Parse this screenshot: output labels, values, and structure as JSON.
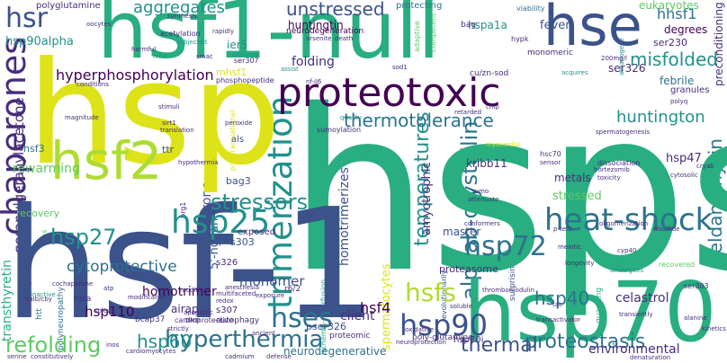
{
  "palette": {
    "dark_purple": "#440154",
    "indigo": "#472d7b",
    "blue": "#3b528b",
    "steel": "#2c728e",
    "teal": "#21918c",
    "sea_green": "#28ae80",
    "green": "#5ec962",
    "lime": "#addc30",
    "yellow": "#dde318"
  },
  "words": {
    "hsps": "hsps",
    "hsf_1": "hsf-1",
    "hsp": "hsp",
    "hsf1_null": "hsf1-null",
    "hsp70": "hsp70",
    "proteotoxic": "proteotoxic",
    "hse": "hse",
    "hsf2": "hsf2",
    "heat_shock": "heat-shock",
    "chaperones": "chaperones",
    "hsr": "hsr",
    "hsp25": "hsp25",
    "hsp72": "hsp72",
    "hsp90": "hsp90",
    "hses": "hses",
    "hsfs": "hsfs",
    "trimerization": "trimerization",
    "stressors": "stressors",
    "hyperthermia": "hyperthermia",
    "refolding": "refolding",
    "unstressed": "unstressed",
    "thermotolerance": "thermotolerance",
    "huntington": "huntington",
    "proteostasis": "proteostasis",
    "hsp27": "hsp27",
    "aggregates": "aggregates",
    "misfolded": "misfolded",
    "hyperphosphorylation": "hyperphosphorylation",
    "cytoprotective": "cytoprotective",
    "hsp60": "hsp60",
    "hsp40": "hsp40",
    "thermal": "thermal",
    "temperatures": "temperatures",
    "hsf4": "hsf4",
    "hsp110": "hsp110",
    "hhsf1": "hhsf1",
    "fever": "fever",
    "eukaryotes": "eukaryotes",
    "hsp90alpha": "hsp90alpha",
    "folding": "folding",
    "huntingtin": "huntingtin",
    "rewarming": "rewarming",
    "alphab_crystallin": "alphab-crystallin",
    "celastrol": "celastrol",
    "monomer": "monomer",
    "homotrimer": "homotrimer",
    "stressed": "stressed",
    "environmental": "environmental",
    "neurodegenerative": "neurodegenerative",
    "client": "client",
    "degrees": "degrees",
    "hsp47": "hsp47",
    "metals": "metals",
    "geldanamycin": "geldanamycin",
    "febrile": "febrile",
    "hspa1a": "hspa1a",
    "ser326": "ser326",
    "ser230": "ser230",
    "ier5": "ier5",
    "hsf3": "hsf3",
    "mhsf1": "mhsf1",
    "amyotrophic": "amyotrophic",
    "master": "master",
    "kribb11": "kribb11",
    "homotrimerizes": "homotrimerizes",
    "proteasome": "proteasome",
    "hsp70i": "hsp70i",
    "pser326": "pser326",
    "airap": "airap",
    "recovery": "recovery",
    "s303": "s303",
    "bag3": "bag3",
    "s326": "s326",
    "s307": "s307",
    "multichaperone": "multichaperone",
    "geranylgeranylacetone": "geranylgeranylacetone",
    "transthyretin": "transthyretin",
    "granules": "granules",
    "polyglutamine": "polyglutamine",
    "ngaan3": "5'-ngaan-3'",
    "preconditioning": "preconditioning",
    "spermatocytes": "spermatocytes",
    "ttr": "ttr",
    "als": "als",
    "bcap37": "bcap37",
    "poly_glutamine": "poly-glutamine",
    "proteomic": "proteomic",
    "autophagy": "autophagy",
    "hela": "hela",
    "cardioprotective": "cardioprotective",
    "hs": "hs",
    "r6_2": "r6/2",
    "exposed": "exposed",
    "neurodegeneration": "neurodegeneration",
    "arsenite": "arsenite",
    "death": "death",
    "protecting": "protecting",
    "viability": "viability",
    "bag": "bag",
    "adaptive": "adaptive",
    "competent": "competent",
    "hypk": "hypk",
    "monomeric": "monomeric",
    "cu_zn_sod": "cu/zn-sod",
    "nf_il6": "nf-il6",
    "assist": "assist",
    "sod1": "sod1",
    "acquires": "acquires",
    "200mg_l": "200mg/l",
    "athanogene": "athanogene",
    "conditions": "conditions",
    "phosphopeptide": "phosphopeptide",
    "ser307": "ser307",
    "alleviate": "alleviate",
    "smac": "smac",
    "mild": "mild",
    "subjected": "subjected",
    "acetylation": "acetylation",
    "rapidly": "rapidly",
    "synthesis": "synthesis",
    "oocytes": "oocytes",
    "harmful": "harmful",
    "magnitude": "magnitude",
    "stimuli": "stimuli",
    "sirt1": "sirt1",
    "translation": "translation",
    "peroxide": "peroxide",
    "quality": "quality",
    "sumoylation": "sumoylation",
    "spermatogenesis": "spermatogenesis",
    "polyq": "polyq",
    "chip": "chip",
    "myocardial": "myocardial",
    "hsc70": "hsc70",
    "sensor": "sensor",
    "dissociation": "dissociation",
    "bortezomib": "bortezomib",
    "toxicity": "toxicity",
    "cytosolic": "cytosolic",
    "cryab": "cryab",
    "oligomerization": "oligomerization",
    "disulfide": "disulfide",
    "meiotic": "meiotic",
    "cyp40": "cyp40",
    "longevity": "longevity",
    "undergoes": "undergoes",
    "recovered": "recovered",
    "hypothermia": "hypothermia",
    "brg1": "brg1",
    "lens": "lens",
    "cochaperone": "cochaperone",
    "inactive": "inactive",
    "dysfunction": "dysfunction",
    "modifier": "modifier",
    "multifaceted": "multifaceted",
    "anesthesia": "anesthesia",
    "exposure": "exposure",
    "modification": "modification",
    "redox": "redox",
    "balb_cby": "balb/cby",
    "atp": "atp",
    "soleus": "soleus",
    "apoptotic": "apoptotic",
    "htt": "htt",
    "polyneuropathy": "polyneuropathy",
    "strictly": "strictly",
    "inos": "inos",
    "cardiomyocytes": "cardiomyocytes",
    "cadmium": "cadmium",
    "serine": "serine",
    "constitutively": "constitutively",
    "defense": "defense",
    "neuroprotection": "neuroprotection",
    "oxidative": "oxidative",
    "ancient": "ancient",
    "parp": "parp",
    "transactivator": "transactivator",
    "tac": "tac",
    "thrombomodulin": "thrombomodulin",
    "denaturation": "denaturation",
    "transiently": "transiently",
    "guarding": "guarding",
    "ser303": "ser303",
    "alanine": "alanine",
    "kinetics": "kinetics",
    "soluble": "soluble",
    "sumo": "sumo",
    "attenuate": "attenuate",
    "evolutionarily": "evolutionarily",
    "conformers": "conformers",
    "surprisingly": "surprisingly",
    "p_tefb": "p-tefb",
    "retarded": "retarded",
    "posttranslational": "posttranslational",
    "ischemia_reperfusion": "ischemia-reperfusion",
    "wrap": "wrap"
  }
}
